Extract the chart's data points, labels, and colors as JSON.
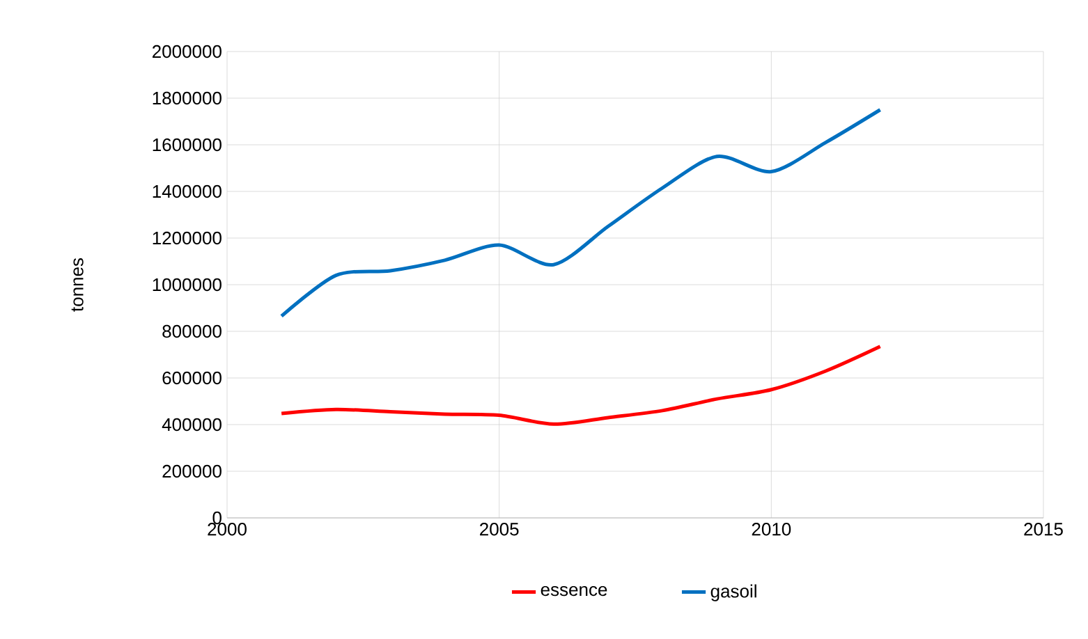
{
  "chart_data": {
    "type": "line",
    "ylabel": "tonnes",
    "x": [
      2001,
      2002,
      2003,
      2004,
      2005,
      2006,
      2007,
      2008,
      2009,
      2010,
      2011,
      2012
    ],
    "series": [
      {
        "name": "essence",
        "color": "#ff0000",
        "values": [
          448000,
          465000,
          455000,
          445000,
          440000,
          402000,
          430000,
          460000,
          510000,
          550000,
          630000,
          735000
        ]
      },
      {
        "name": "gasoil",
        "color": "#0070c0",
        "values": [
          865000,
          1040000,
          1060000,
          1105000,
          1170000,
          1086000,
          1250000,
          1415000,
          1550000,
          1485000,
          1610000,
          1750000
        ]
      }
    ],
    "xlim": [
      2000,
      2015
    ],
    "xticks": [
      2000,
      2005,
      2010,
      2015
    ],
    "ylim": [
      0,
      2000000
    ],
    "yticks": [
      0,
      200000,
      400000,
      600000,
      800000,
      1000000,
      1200000,
      1400000,
      1600000,
      1800000,
      2000000
    ],
    "grid": true,
    "legend": "bottom",
    "marker": "none",
    "line_style": "solid"
  }
}
